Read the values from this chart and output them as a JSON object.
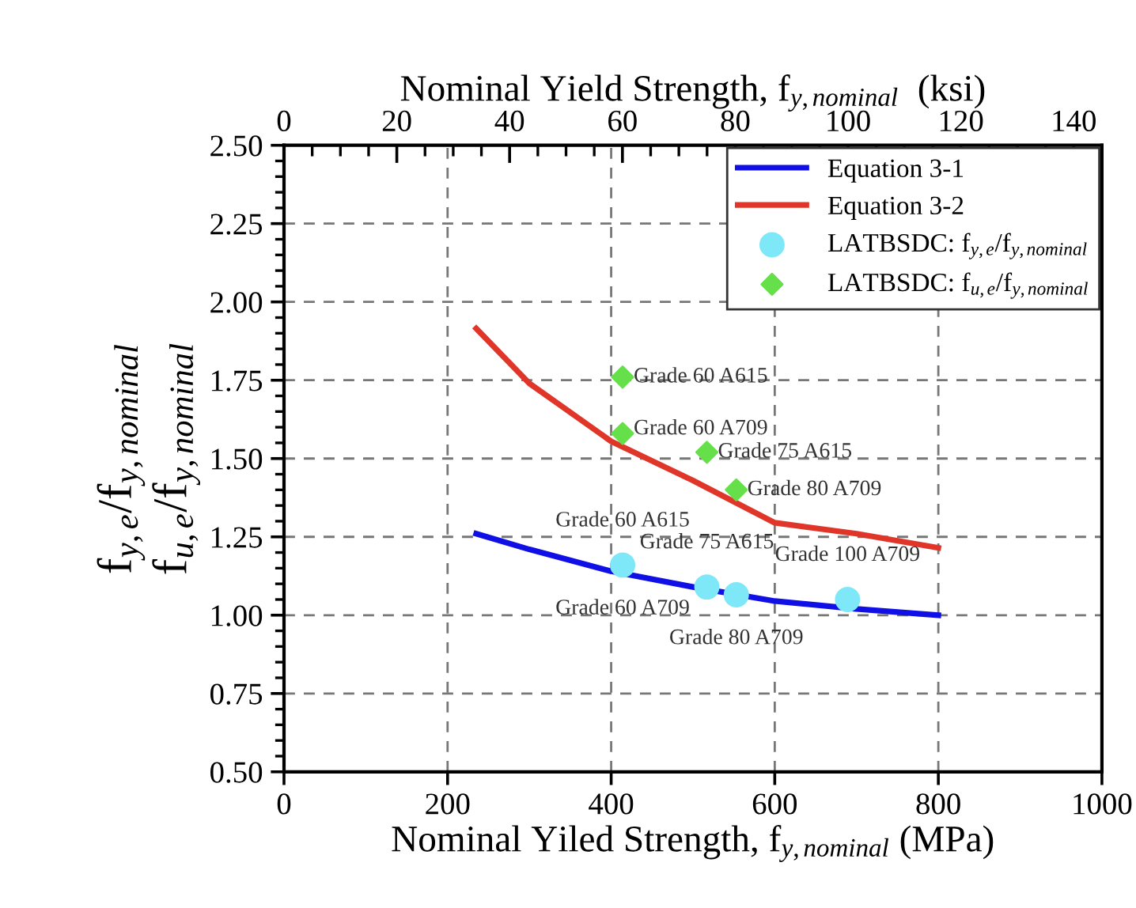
{
  "chart_data": {
    "type": "line",
    "xlabel": "Nominal Yiled Strength, f$_{y,nominal}$ (MPa)",
    "ylabel": "f$_{y,e}$/f$_{y,nominal}$\nf$_{u,e}$/f$_{y,nominal}$",
    "x2label": "Nominal Yield Strength, f$_{y,nominal}$  (ksi)",
    "xlim": [
      0,
      1000
    ],
    "xticks": [
      0,
      200,
      400,
      600,
      800,
      1000
    ],
    "ylim": [
      0.5,
      2.5
    ],
    "yticks": [
      {
        "value": 0.5,
        "label": "0.50"
      },
      {
        "value": 0.75,
        "label": "0.75"
      },
      {
        "value": 1.0,
        "label": "1.00"
      },
      {
        "value": 1.25,
        "label": "1.25"
      },
      {
        "value": 1.5,
        "label": "1.50"
      },
      {
        "value": 1.75,
        "label": "1.75"
      },
      {
        "value": 2.0,
        "label": "2.00"
      },
      {
        "value": 2.25,
        "label": "2.25"
      },
      {
        "value": 2.5,
        "label": "2.50"
      }
    ],
    "x2lim": [
      0,
      145
    ],
    "x2ticks": [
      0,
      20,
      40,
      60,
      80,
      100,
      120,
      140
    ],
    "grid": true,
    "legend": "top right",
    "series": [
      {
        "name": "Equation 3-1",
        "color": "#1010e6",
        "line_style": "solid",
        "marker": "none",
        "x": [
          235,
          300,
          400,
          500,
          600,
          700,
          800
        ],
        "values": [
          1.26,
          1.21,
          1.14,
          1.09,
          1.045,
          1.02,
          1.0
        ]
      },
      {
        "name": "Equation 3-2",
        "color": "#e0362a",
        "line_style": "solid",
        "marker": "none",
        "x": [
          235,
          300,
          400,
          500,
          600,
          700,
          800
        ],
        "values": [
          1.915,
          1.74,
          1.555,
          1.43,
          1.295,
          1.26,
          1.215
        ]
      },
      {
        "name": "LATBSDC: f$_{y,e}$/f$_{y,nominal}$",
        "type": "scatter",
        "color": "#7ee8f8",
        "marker": "circle",
        "x": [
          414,
          517,
          553,
          689
        ],
        "values": [
          1.16,
          1.09,
          1.065,
          1.05
        ]
      },
      {
        "name": "LATBSDC: f$_{u,e}$/f$_{y,nominal}$",
        "type": "scatter",
        "color": "#66e04a",
        "marker": "diamond",
        "x": [
          414,
          414,
          517,
          553
        ],
        "values": [
          1.76,
          1.58,
          1.52,
          1.4
        ]
      }
    ],
    "annotations": [
      {
        "text": "Grade 60 A615",
        "x": 414,
        "y": 1.76
      },
      {
        "text": "Grade 60 A709",
        "x": 414,
        "y": 1.58
      },
      {
        "text": "Grade 75 A615",
        "x": 517,
        "y": 1.52
      },
      {
        "text": "Grade 80 A709",
        "x": 553,
        "y": 1.4
      },
      {
        "text": "Grade 60 A615",
        "x": 414,
        "y": 1.16
      },
      {
        "text": "Grade 75 A615",
        "x": 517,
        "y": 1.09
      },
      {
        "text": "Grade 100 A709",
        "x": 689,
        "y": 1.05
      },
      {
        "text": "Grade 60 A709",
        "x": 414,
        "y": 1.16
      },
      {
        "text": "Grade 80 A709",
        "x": 553,
        "y": 1.065
      }
    ]
  }
}
